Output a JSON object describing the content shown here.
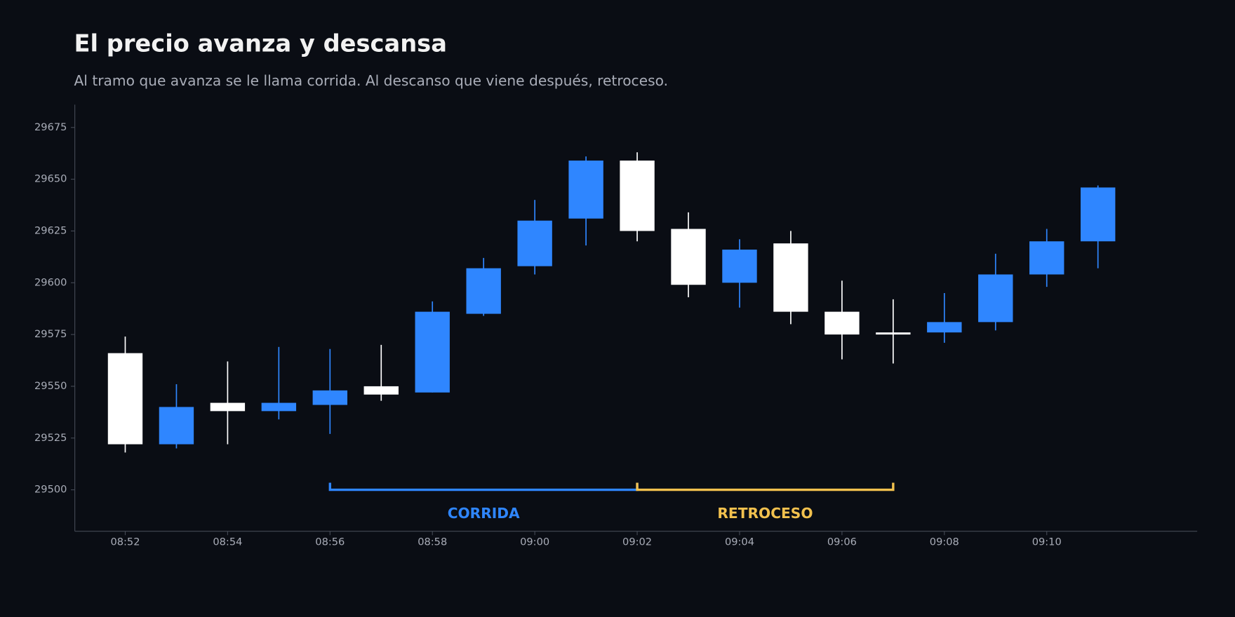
{
  "chart_data": {
    "type": "candlestick",
    "title": "El precio avanza y descansa",
    "subtitle": "Al tramo que avanza se le llama corrida. Al descanso que viene después, retroceso.",
    "categories": [
      "08:52",
      null,
      "08:54",
      null,
      "08:56",
      null,
      "08:58",
      null,
      "09:00",
      null,
      "09:02",
      null,
      "09:04",
      null,
      "09:06",
      null,
      "09:08",
      null,
      "09:10",
      null
    ],
    "open": [
      29566,
      29522,
      29542,
      29538,
      29541,
      29550,
      29547,
      29585,
      29608,
      29631,
      29659,
      29626,
      29600,
      29619,
      29586,
      29576,
      29576,
      29581,
      29604,
      29620
    ],
    "high": [
      29574,
      29551,
      29562,
      29569,
      29568,
      29570,
      29591,
      29612,
      29640,
      29661,
      29663,
      29634,
      29621,
      29625,
      29601,
      29592,
      29595,
      29614,
      29626,
      29647
    ],
    "low": [
      29518,
      29520,
      29522,
      29534,
      29527,
      29543,
      29547,
      29584,
      29604,
      29618,
      29620,
      29593,
      29588,
      29580,
      29563,
      29561,
      29571,
      29577,
      29598,
      29607
    ],
    "close": [
      29522,
      29540,
      29538,
      29542,
      29548,
      29546,
      29586,
      29607,
      29630,
      29659,
      29625,
      29599,
      29616,
      29586,
      29575,
      29575,
      29581,
      29604,
      29620,
      29646
    ],
    "up_color": "#2f86ff",
    "down_color": "#ffffff",
    "ylim": [
      29480,
      29686
    ],
    "yticks": [
      29500,
      29525,
      29550,
      29575,
      29600,
      29625,
      29650,
      29675
    ],
    "annotations": [
      {
        "label": "CORRIDA",
        "from": 4,
        "to": 10,
        "y": 29500,
        "color": "#2f86ff"
      },
      {
        "label": "RETROCESO",
        "from": 10,
        "to": 15,
        "y": 29500,
        "color": "#f2c14e"
      }
    ]
  }
}
